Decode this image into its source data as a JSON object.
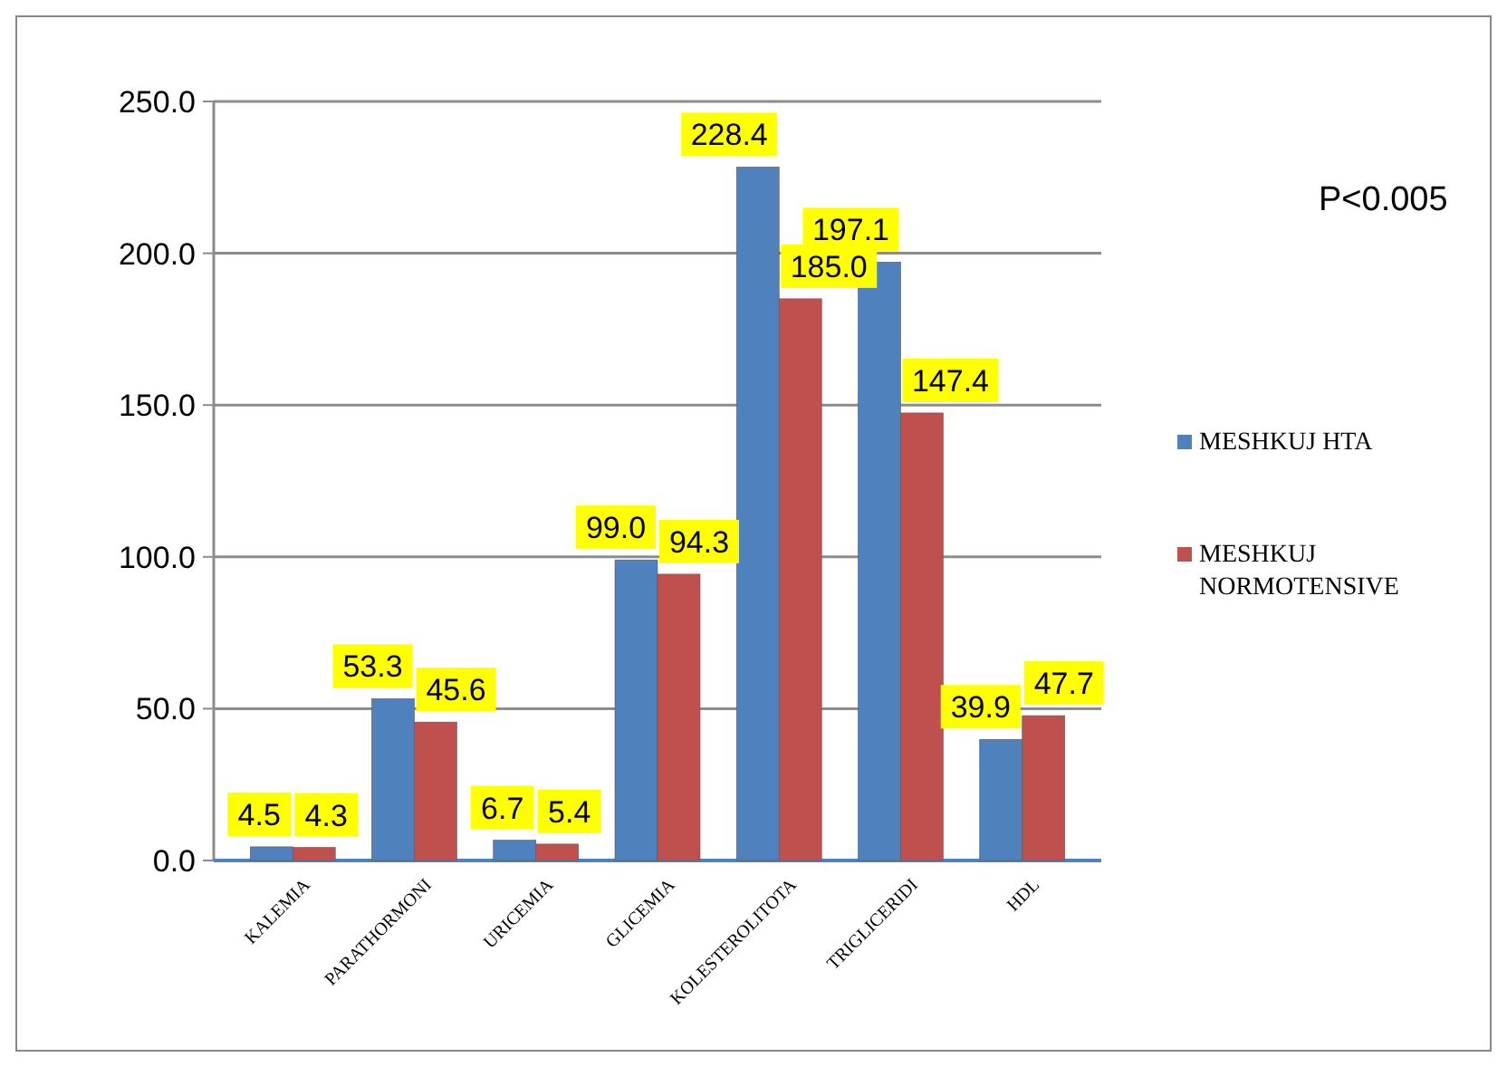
{
  "chart_data": {
    "type": "bar",
    "categories": [
      "KALEMIA",
      "PARATHORMONI",
      "URICEMIA",
      "GLICEMIA",
      "KOLESTEROLITOTA",
      "TRIGLICERIDI",
      "HDL"
    ],
    "series": [
      {
        "name": "MESHKUJ HTA",
        "color": "#4f81bd",
        "values": [
          4.5,
          53.3,
          6.7,
          99.0,
          228.4,
          197.1,
          39.9
        ],
        "value_labels": [
          "4.5",
          "53.3",
          "6.7",
          "99.0",
          "228.4",
          "197.1",
          "39.9"
        ]
      },
      {
        "name": "MESHKUJ NORMOTENSIVE",
        "color": "#c0504d",
        "values": [
          4.3,
          45.6,
          5.4,
          94.3,
          185.0,
          147.4,
          47.7
        ],
        "value_labels": [
          "4.3",
          "45.6",
          "5.4",
          "94.3",
          "185.0",
          "147.4",
          "47.7"
        ]
      }
    ],
    "ylim": [
      0,
      250
    ],
    "yticks": [
      {
        "value": 0,
        "label": "0.0"
      },
      {
        "value": 50,
        "label": "50.0"
      },
      {
        "value": 100,
        "label": "100.0"
      },
      {
        "value": 150,
        "label": "150.0"
      },
      {
        "value": 200,
        "label": "200.0"
      },
      {
        "value": 250,
        "label": "250.0"
      }
    ],
    "grid": "y",
    "legend": "right",
    "annotations": [
      "P<0.005"
    ]
  }
}
